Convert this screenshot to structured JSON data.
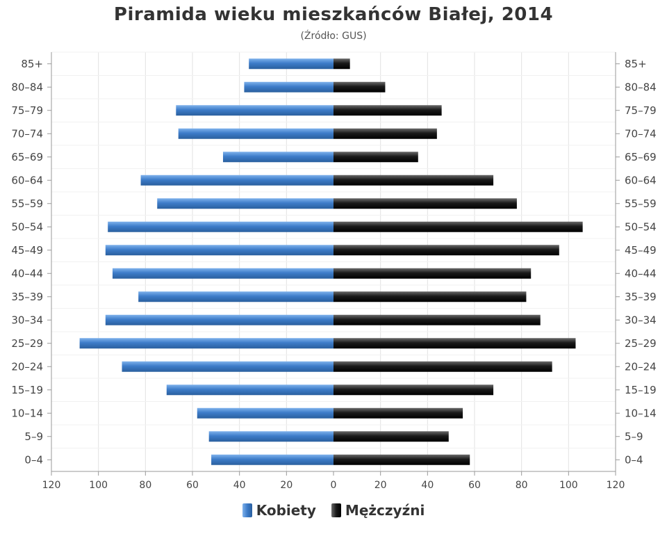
{
  "chart_data": {
    "type": "bar",
    "orientation": "horizontal",
    "layout": "population-pyramid",
    "title": "Piramida wieku mieszkańców Białej, 2014",
    "subtitle": "(Źródło: GUS)",
    "categories": [
      "85+",
      "80–84",
      "75–79",
      "70–74",
      "65–69",
      "60–64",
      "55–59",
      "50–54",
      "45–49",
      "40–44",
      "35–39",
      "30–34",
      "25–29",
      "20–24",
      "15–19",
      "10–14",
      "5–9",
      "0–4"
    ],
    "series": [
      {
        "name": "Kobiety",
        "color": "#3d7cc9",
        "values": [
          36,
          38,
          67,
          66,
          47,
          82,
          75,
          96,
          97,
          94,
          83,
          97,
          108,
          90,
          71,
          58,
          53,
          52
        ]
      },
      {
        "name": "Mężczyźni",
        "color": "#1a1a1a",
        "values": [
          7,
          22,
          46,
          44,
          36,
          68,
          78,
          106,
          96,
          84,
          82,
          88,
          103,
          93,
          68,
          55,
          49,
          58
        ]
      }
    ],
    "xlim": [
      -120,
      120
    ],
    "x_ticks": [
      120,
      100,
      80,
      60,
      40,
      20,
      0,
      20,
      40,
      60,
      80,
      100,
      120
    ],
    "grid": true,
    "legend_position": "bottom-center",
    "category_labels_both_sides": true
  }
}
